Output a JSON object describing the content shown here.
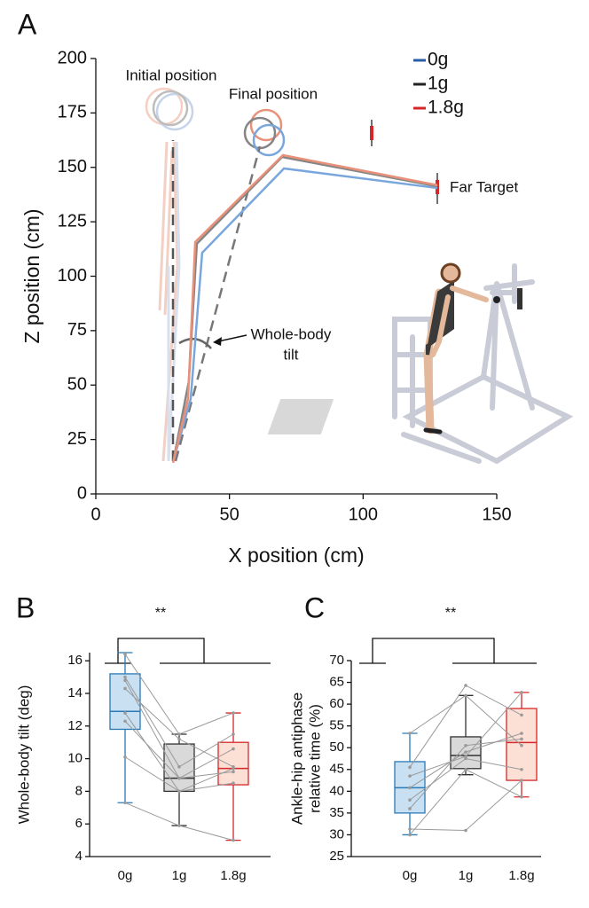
{
  "chart_data": [
    {
      "type": "line",
      "panel": "A",
      "xlabel": "X position (cm)",
      "ylabel": "Z position (cm)",
      "xlim": [
        0,
        150
      ],
      "xticks": [
        0,
        50,
        100,
        150
      ],
      "ylim": [
        0,
        200
      ],
      "yticks": [
        0,
        25,
        50,
        75,
        100,
        125,
        150,
        175,
        200
      ],
      "annotations": [
        "Initial position",
        "Final position",
        "Whole-body",
        "tilt",
        "Far Target"
      ],
      "series": [
        {
          "name": "0g",
          "color": "#2b5ca8",
          "line_color": "#79a6dc",
          "x": [
            29.2,
            35.5,
            39.8,
            70.4,
            127.8
          ],
          "values": [
            15.9,
            43.6,
            110.8,
            149.5,
            140.5
          ]
        },
        {
          "name": "1g",
          "color": "#222222",
          "line_color": "#858585",
          "x": [
            29.0,
            34.8,
            37.8,
            69.7,
            127.8
          ],
          "values": [
            15.0,
            51.7,
            114.9,
            154.8,
            141.3
          ]
        },
        {
          "name": "1.8g",
          "color": "#d62728",
          "line_color": "#e8907a",
          "x": [
            28.9,
            34.5,
            37.2,
            70.0,
            127.8
          ],
          "values": [
            14.3,
            43.6,
            115.7,
            155.6,
            141.8
          ]
        }
      ]
    },
    {
      "type": "box",
      "panel": "B",
      "ylabel": [
        "Whole-body tilt (deg)"
      ],
      "annotation": "**",
      "categories": [
        "0g",
        "1g",
        "1.8g"
      ],
      "ylim": [
        4,
        16.5
      ],
      "yticks": [
        4,
        6,
        8,
        10,
        12,
        14,
        16
      ],
      "boxes": [
        {
          "min": 7.3,
          "q1": 11.8,
          "median": 12.9,
          "q3": 15.2,
          "max": 16.5,
          "color": "#2a7ab8",
          "fill": "#c9e0f2"
        },
        {
          "min": 5.9,
          "q1": 8.0,
          "median": 8.8,
          "q3": 10.9,
          "max": 11.5,
          "color": "#333333",
          "fill": "#d9d9d9"
        },
        {
          "min": 5.0,
          "q1": 8.4,
          "median": 9.4,
          "q3": 11.0,
          "max": 12.8,
          "color": "#d62728",
          "fill": "#fce0d6"
        }
      ],
      "subjects": [
        [
          16.4,
          11.5,
          12.8
        ],
        [
          15.0,
          9.5,
          11.5
        ],
        [
          14.8,
          8.8,
          10.6
        ],
        [
          14.3,
          11.2,
          9.5
        ],
        [
          12.8,
          8.0,
          9.4
        ],
        [
          12.3,
          8.8,
          9.2
        ],
        [
          10.1,
          8.0,
          8.5
        ],
        [
          7.3,
          5.9,
          5.0
        ]
      ]
    },
    {
      "type": "box",
      "panel": "C",
      "ylabel": [
        "Ankle-hip antiphase",
        "relative time (%)"
      ],
      "annotation": "**",
      "categories": [
        "0g",
        "1g",
        "1.8g"
      ],
      "ylim": [
        25,
        70
      ],
      "yticks": [
        25,
        30,
        35,
        40,
        45,
        50,
        55,
        60,
        65,
        70
      ],
      "boxes": [
        {
          "min": 30.0,
          "q1": 35.0,
          "median": 40.8,
          "q3": 46.8,
          "max": 53.3,
          "color": "#2a7ab8",
          "fill": "#c9e0f2"
        },
        {
          "min": 43.8,
          "q1": 45.2,
          "median": 48.2,
          "q3": 52.5,
          "max": 62.0,
          "color": "#333333",
          "fill": "#d9d9d9"
        },
        {
          "min": 38.7,
          "q1": 42.5,
          "median": 51.2,
          "q3": 59.0,
          "max": 62.7,
          "color": "#d62728",
          "fill": "#fce0d6"
        }
      ],
      "subjects": [
        [
          53.3,
          62.0,
          50.5
        ],
        [
          45.5,
          64.3,
          57.5
        ],
        [
          43.5,
          48.0,
          62.7
        ],
        [
          40.8,
          49.0,
          53.3
        ],
        [
          38.0,
          47.5,
          45.0
        ],
        [
          36.0,
          50.5,
          52.0
        ],
        [
          31.3,
          31.0,
          42.5
        ],
        [
          30.0,
          45.0,
          38.7
        ]
      ]
    }
  ]
}
